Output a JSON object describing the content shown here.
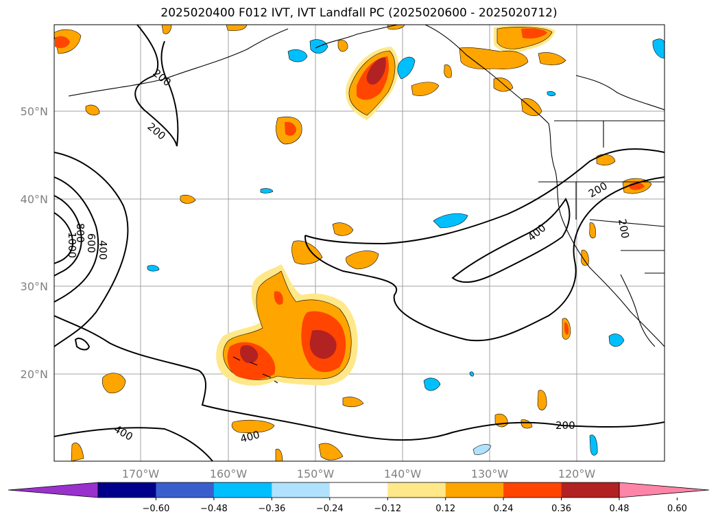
{
  "title": "2025020400 F012 IVT, IVT Landfall PC (2025020600 - 2025020712)",
  "lat_labels": [
    "50°N",
    "40°N",
    "30°N",
    "20°N"
  ],
  "lon_labels": [
    "170°W",
    "160°W",
    "150°W",
    "140°W",
    "130°W",
    "120°W"
  ],
  "contour_labels": [
    "200",
    "200",
    "200",
    "200",
    "200",
    "400",
    "400",
    "400",
    "400",
    "600",
    "800",
    "1000"
  ],
  "colorbar": {
    "ticks": [
      "−0.60",
      "−0.48",
      "−0.36",
      "−0.24",
      "−0.12",
      "0.12",
      "0.24",
      "0.36",
      "0.48",
      "0.60"
    ],
    "colors": [
      "#9932cc",
      "#00008b",
      "#3a5fcd",
      "#00bfff",
      "#b0e2ff",
      "#ffffff",
      "#ffe88a",
      "#ffa500",
      "#ff4500",
      "#b22222",
      "#ff85a8"
    ]
  }
}
